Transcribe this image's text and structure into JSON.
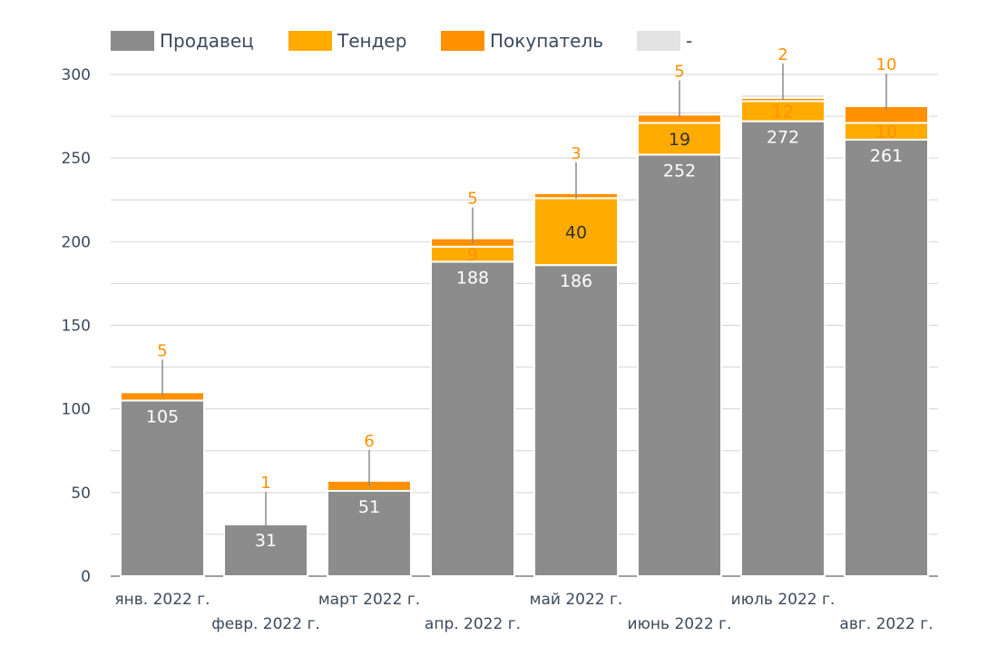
{
  "chart_data": {
    "type": "bar",
    "stacked": true,
    "categories": [
      "янв. 2022 г.",
      "февр. 2022 г.",
      "март 2022 г.",
      "апр. 2022 г.",
      "май 2022 г.",
      "июнь 2022 г.",
      "июль 2022 г.",
      "авг. 2022 г."
    ],
    "series": [
      {
        "name": "Продавец",
        "color": "#8c8c8c",
        "values": [
          105,
          31,
          51,
          188,
          186,
          252,
          272,
          261
        ],
        "labels": [
          "105",
          "31",
          "51",
          "188",
          "186",
          "252",
          "272",
          "261"
        ]
      },
      {
        "name": "Тендер",
        "color": "#ffab00",
        "values": [
          0,
          0,
          0,
          9,
          40,
          19,
          12,
          10
        ],
        "labels": [
          "",
          "",
          "",
          "9",
          "40",
          "19",
          "12",
          "10"
        ]
      },
      {
        "name": "Покупатель",
        "color": "#ff9100",
        "values": [
          5,
          1,
          6,
          5,
          3,
          5,
          2,
          10
        ],
        "labels": [
          "5",
          "1",
          "6",
          "5",
          "3",
          "5",
          "2",
          "10"
        ]
      },
      {
        "name": "-",
        "color": "#e3e3e3",
        "values": [
          1,
          0,
          0,
          0,
          0,
          2,
          2,
          1
        ],
        "labels": [
          "",
          "",
          "",
          "",
          "",
          "",
          "",
          ""
        ]
      }
    ],
    "yticks": [
      "0",
      "50",
      "100",
      "150",
      "200",
      "250",
      "300"
    ],
    "ylim": [
      0,
      300
    ],
    "grid": true,
    "minor_grid_step": 25,
    "legend_position": "top-left"
  }
}
